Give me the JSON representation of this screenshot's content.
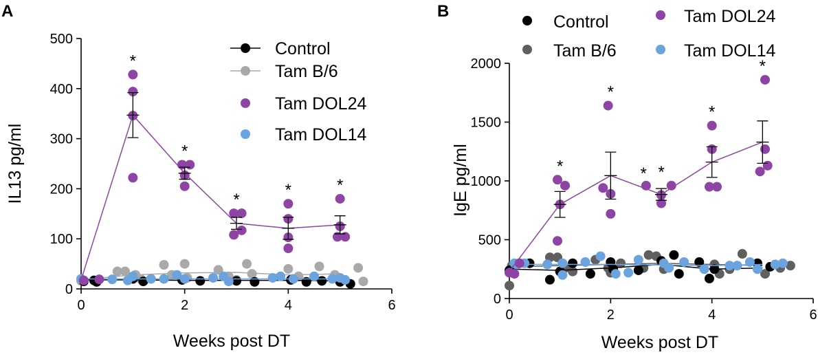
{
  "figure": {
    "colors": {
      "control": "#000000",
      "tam_b6_panelA": "#a9a9a9",
      "tam_b6_panelB": "#5f5f5f",
      "tam_dol24": "#8e44a4",
      "tam_dol14": "#6aa3dd",
      "axis": "#000000"
    }
  },
  "chart_data": [
    {
      "panel_label": "A",
      "type": "scatter",
      "title": "",
      "xlabel": "Weeks post  DT",
      "ylabel": "IL13 pg/ml",
      "xlim": [
        0,
        6
      ],
      "ylim": [
        0,
        500
      ],
      "xticks": [
        0,
        2,
        4,
        6
      ],
      "yticks": [
        0,
        100,
        200,
        300,
        400,
        500
      ],
      "grid": false,
      "legend_position": "top-right",
      "legend": [
        "Control",
        "Tam B/6",
        "Tam DOL24",
        "Tam DOL14"
      ],
      "series": [
        {
          "name": "Control",
          "color_key": "control",
          "mean_line": true,
          "means": [
            {
              "x": 0,
              "y": 18
            },
            {
              "x": 1,
              "y": 18
            },
            {
              "x": 2,
              "y": 17
            },
            {
              "x": 3,
              "y": 17
            },
            {
              "x": 4,
              "y": 17
            },
            {
              "x": 5,
              "y": 16
            }
          ],
          "points": [
            {
              "x": 0.05,
              "y": 15
            },
            {
              "x": 0.25,
              "y": 17
            },
            {
              "x": 0.3,
              "y": 14
            },
            {
              "x": 1.0,
              "y": 20
            },
            {
              "x": 1.2,
              "y": 15
            },
            {
              "x": 1.95,
              "y": 18
            },
            {
              "x": 2.3,
              "y": 16
            },
            {
              "x": 3.0,
              "y": 16
            },
            {
              "x": 3.35,
              "y": 14
            },
            {
              "x": 4.05,
              "y": 18
            },
            {
              "x": 4.35,
              "y": 14
            },
            {
              "x": 4.65,
              "y": 16
            },
            {
              "x": 5.0,
              "y": 14
            },
            {
              "x": 5.2,
              "y": 10
            }
          ]
        },
        {
          "name": "Tam B/6",
          "color_key": "tam_b6_panelA",
          "mean_line": true,
          "means": [
            {
              "x": 0,
              "y": 18
            },
            {
              "x": 1,
              "y": 28
            },
            {
              "x": 2,
              "y": 32
            },
            {
              "x": 3,
              "y": 33
            },
            {
              "x": 4,
              "y": 28
            },
            {
              "x": 5,
              "y": 30
            }
          ],
          "points": [
            {
              "x": 0.0,
              "y": 16
            },
            {
              "x": 0.7,
              "y": 35
            },
            {
              "x": 0.85,
              "y": 35
            },
            {
              "x": 1.05,
              "y": 28
            },
            {
              "x": 1.15,
              "y": 20
            },
            {
              "x": 1.6,
              "y": 48
            },
            {
              "x": 1.75,
              "y": 28
            },
            {
              "x": 2.0,
              "y": 50
            },
            {
              "x": 2.05,
              "y": 22
            },
            {
              "x": 2.65,
              "y": 38
            },
            {
              "x": 2.85,
              "y": 25
            },
            {
              "x": 3.2,
              "y": 50
            },
            {
              "x": 3.3,
              "y": 30
            },
            {
              "x": 3.0,
              "y": 18
            },
            {
              "x": 4.0,
              "y": 40
            },
            {
              "x": 4.2,
              "y": 25
            },
            {
              "x": 4.6,
              "y": 45
            },
            {
              "x": 4.9,
              "y": 28
            },
            {
              "x": 5.35,
              "y": 42
            },
            {
              "x": 5.45,
              "y": 15
            }
          ]
        },
        {
          "name": "Tam DOL24",
          "color_key": "tam_dol24",
          "mean_line": true,
          "means": [
            {
              "x": 0,
              "y": 18
            },
            {
              "x": 1,
              "y": 347
            },
            {
              "x": 2,
              "y": 231
            },
            {
              "x": 3,
              "y": 131
            },
            {
              "x": 4,
              "y": 121
            },
            {
              "x": 5,
              "y": 128
            }
          ],
          "sem": [
            0,
            45,
            12,
            12,
            22,
            18
          ],
          "significant": [
            false,
            true,
            true,
            true,
            true,
            true
          ],
          "points": [
            {
              "x": 0.05,
              "y": 17
            },
            {
              "x": 0.35,
              "y": 19
            },
            {
              "x": 1.0,
              "y": 428
            },
            {
              "x": 1.0,
              "y": 394
            },
            {
              "x": 1.0,
              "y": 346
            },
            {
              "x": 1.0,
              "y": 222
            },
            {
              "x": 1.95,
              "y": 248
            },
            {
              "x": 2.1,
              "y": 248
            },
            {
              "x": 2.0,
              "y": 227
            },
            {
              "x": 2.0,
              "y": 205
            },
            {
              "x": 2.95,
              "y": 151
            },
            {
              "x": 3.1,
              "y": 151
            },
            {
              "x": 3.1,
              "y": 117
            },
            {
              "x": 2.95,
              "y": 108
            },
            {
              "x": 4.0,
              "y": 170
            },
            {
              "x": 4.0,
              "y": 140
            },
            {
              "x": 4.0,
              "y": 103
            },
            {
              "x": 4.0,
              "y": 81
            },
            {
              "x": 5.0,
              "y": 180
            },
            {
              "x": 5.0,
              "y": 125
            },
            {
              "x": 4.95,
              "y": 104
            },
            {
              "x": 5.1,
              "y": 104
            }
          ]
        },
        {
          "name": "Tam DOL14",
          "color_key": "tam_dol14",
          "mean_line": true,
          "means": [
            {
              "x": 0,
              "y": 20
            },
            {
              "x": 1,
              "y": 20
            },
            {
              "x": 2,
              "y": 20
            },
            {
              "x": 3,
              "y": 20
            },
            {
              "x": 4,
              "y": 20
            },
            {
              "x": 5,
              "y": 20
            }
          ],
          "points": [
            {
              "x": 0.0,
              "y": 20
            },
            {
              "x": 0.6,
              "y": 19
            },
            {
              "x": 0.9,
              "y": 17
            },
            {
              "x": 1.0,
              "y": 25
            },
            {
              "x": 1.35,
              "y": 20
            },
            {
              "x": 1.6,
              "y": 20
            },
            {
              "x": 1.85,
              "y": 28
            },
            {
              "x": 2.0,
              "y": 20
            },
            {
              "x": 2.55,
              "y": 22
            },
            {
              "x": 2.75,
              "y": 25
            },
            {
              "x": 2.85,
              "y": 15
            },
            {
              "x": 3.7,
              "y": 22
            },
            {
              "x": 3.85,
              "y": 25
            },
            {
              "x": 4.1,
              "y": 20
            },
            {
              "x": 4.5,
              "y": 25
            },
            {
              "x": 4.85,
              "y": 20
            },
            {
              "x": 5.0,
              "y": 22
            },
            {
              "x": 5.1,
              "y": 18
            }
          ]
        }
      ]
    },
    {
      "panel_label": "B",
      "type": "scatter",
      "title": "",
      "xlabel": "Weeks post  DT",
      "ylabel": "IgE pg/ml",
      "xlim": [
        0,
        6
      ],
      "ylim": [
        0,
        2000
      ],
      "xticks": [
        0,
        2,
        4,
        6
      ],
      "yticks": [
        0,
        500,
        1000,
        1500,
        2000
      ],
      "grid": false,
      "legend_position": "top",
      "legend": [
        "Control",
        "Tam B/6",
        "Tam DOL24",
        "Tam DOL14"
      ],
      "series": [
        {
          "name": "Control",
          "color_key": "control",
          "mean_line": true,
          "means": [
            {
              "x": 0,
              "y": 250
            },
            {
              "x": 1,
              "y": 240
            },
            {
              "x": 2,
              "y": 260
            },
            {
              "x": 3,
              "y": 290
            },
            {
              "x": 4,
              "y": 250
            },
            {
              "x": 5,
              "y": 260
            }
          ],
          "points": [
            {
              "x": 0.0,
              "y": 240
            },
            {
              "x": 0.4,
              "y": 300
            },
            {
              "x": 0.8,
              "y": 160
            },
            {
              "x": 1.0,
              "y": 230
            },
            {
              "x": 1.25,
              "y": 300
            },
            {
              "x": 1.6,
              "y": 210
            },
            {
              "x": 2.0,
              "y": 310
            },
            {
              "x": 2.05,
              "y": 250
            },
            {
              "x": 2.55,
              "y": 240
            },
            {
              "x": 3.0,
              "y": 320
            },
            {
              "x": 3.25,
              "y": 370
            },
            {
              "x": 3.35,
              "y": 210
            },
            {
              "x": 3.75,
              "y": 310
            },
            {
              "x": 3.95,
              "y": 170
            },
            {
              "x": 4.05,
              "y": 250
            },
            {
              "x": 4.9,
              "y": 300
            },
            {
              "x": 5.15,
              "y": 270
            }
          ]
        },
        {
          "name": "Tam B/6",
          "color_key": "tam_b6_panelB",
          "mean_line": true,
          "means": [
            {
              "x": 0,
              "y": 270
            },
            {
              "x": 1,
              "y": 280
            },
            {
              "x": 2,
              "y": 290
            },
            {
              "x": 3,
              "y": 300
            },
            {
              "x": 4,
              "y": 290
            },
            {
              "x": 5,
              "y": 280
            }
          ],
          "points": [
            {
              "x": 0.0,
              "y": 110
            },
            {
              "x": 0.05,
              "y": 280
            },
            {
              "x": 0.8,
              "y": 350
            },
            {
              "x": 0.95,
              "y": 350
            },
            {
              "x": 1.1,
              "y": 260
            },
            {
              "x": 1.25,
              "y": 230
            },
            {
              "x": 1.7,
              "y": 330
            },
            {
              "x": 1.95,
              "y": 260
            },
            {
              "x": 2.0,
              "y": 220
            },
            {
              "x": 2.2,
              "y": 300
            },
            {
              "x": 2.65,
              "y": 260
            },
            {
              "x": 2.75,
              "y": 370
            },
            {
              "x": 2.9,
              "y": 360
            },
            {
              "x": 3.05,
              "y": 250
            },
            {
              "x": 4.05,
              "y": 290
            },
            {
              "x": 4.15,
              "y": 210
            },
            {
              "x": 4.35,
              "y": 250
            },
            {
              "x": 4.6,
              "y": 380
            },
            {
              "x": 5.05,
              "y": 210
            },
            {
              "x": 5.35,
              "y": 260
            },
            {
              "x": 5.55,
              "y": 280
            }
          ]
        },
        {
          "name": "Tam DOL24",
          "color_key": "tam_dol24",
          "mean_line": true,
          "means": [
            {
              "x": 0,
              "y": 230
            },
            {
              "x": 1,
              "y": 800
            },
            {
              "x": 2,
              "y": 1045
            },
            {
              "x": 3,
              "y": 885
            },
            {
              "x": 4,
              "y": 1160
            },
            {
              "x": 5,
              "y": 1330
            }
          ],
          "sem": [
            0,
            110,
            200,
            50,
            130,
            180
          ],
          "significant": [
            false,
            true,
            true,
            true,
            true,
            true
          ],
          "points": [
            {
              "x": 0.0,
              "y": 220
            },
            {
              "x": 0.1,
              "y": 210
            },
            {
              "x": 0.2,
              "y": 300
            },
            {
              "x": 0.95,
              "y": 1010
            },
            {
              "x": 1.1,
              "y": 960
            },
            {
              "x": 1.0,
              "y": 800
            },
            {
              "x": 0.95,
              "y": 490
            },
            {
              "x": 1.95,
              "y": 1640
            },
            {
              "x": 1.85,
              "y": 940
            },
            {
              "x": 2.0,
              "y": 890
            },
            {
              "x": 2.0,
              "y": 720
            },
            {
              "x": 2.7,
              "y": 960
            },
            {
              "x": 3.0,
              "y": 880
            },
            {
              "x": 3.0,
              "y": 810
            },
            {
              "x": 3.2,
              "y": 960
            },
            {
              "x": 4.0,
              "y": 1470
            },
            {
              "x": 4.0,
              "y": 1270
            },
            {
              "x": 3.95,
              "y": 950
            },
            {
              "x": 4.1,
              "y": 950
            },
            {
              "x": 5.05,
              "y": 1860
            },
            {
              "x": 5.05,
              "y": 1270
            },
            {
              "x": 5.1,
              "y": 1130
            },
            {
              "x": 4.95,
              "y": 1080
            }
          ]
        },
        {
          "name": "Tam DOL14",
          "color_key": "tam_dol14",
          "mean_line": true,
          "means": [
            {
              "x": 0,
              "y": 290
            },
            {
              "x": 1,
              "y": 290
            },
            {
              "x": 2,
              "y": 290
            },
            {
              "x": 3,
              "y": 285
            },
            {
              "x": 4,
              "y": 280
            },
            {
              "x": 5,
              "y": 290
            }
          ],
          "points": [
            {
              "x": 0.1,
              "y": 300
            },
            {
              "x": 0.15,
              "y": 290
            },
            {
              "x": 0.3,
              "y": 300
            },
            {
              "x": 0.75,
              "y": 290
            },
            {
              "x": 1.05,
              "y": 300
            },
            {
              "x": 1.05,
              "y": 200
            },
            {
              "x": 1.5,
              "y": 310
            },
            {
              "x": 1.8,
              "y": 360
            },
            {
              "x": 2.1,
              "y": 210
            },
            {
              "x": 2.35,
              "y": 220
            },
            {
              "x": 2.55,
              "y": 330
            },
            {
              "x": 3.05,
              "y": 300
            },
            {
              "x": 3.15,
              "y": 260
            },
            {
              "x": 3.45,
              "y": 310
            },
            {
              "x": 3.85,
              "y": 250
            },
            {
              "x": 4.35,
              "y": 280
            },
            {
              "x": 4.5,
              "y": 280
            },
            {
              "x": 4.75,
              "y": 310
            },
            {
              "x": 4.9,
              "y": 250
            },
            {
              "x": 5.25,
              "y": 290
            },
            {
              "x": 5.4,
              "y": 300
            }
          ]
        }
      ]
    }
  ]
}
